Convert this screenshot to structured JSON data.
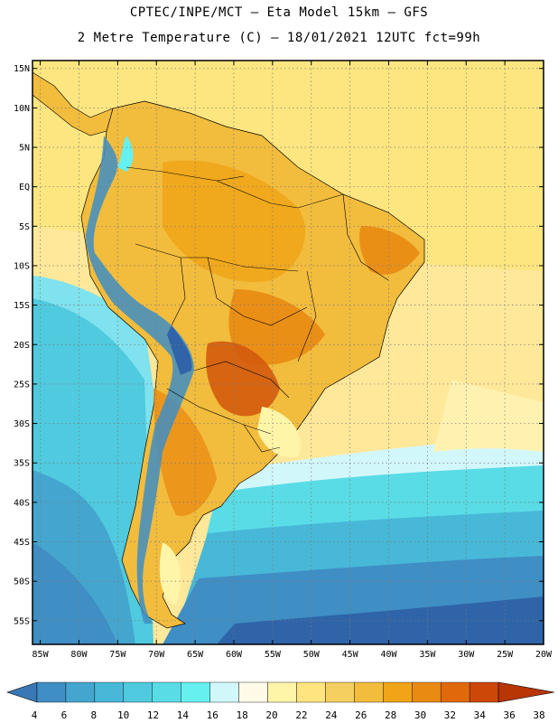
{
  "header": {
    "line1": "CPTEC/INPE/MCT –  Eta Model 15km – GFS",
    "line2": "2 Metre Temperature (C) – 18/01/2021 12UTC fct=99h"
  },
  "map": {
    "extent": {
      "lon_min": -86,
      "lon_max": -20,
      "lat_min": -58,
      "lat_max": 16
    },
    "lat_ticks": [
      15,
      10,
      5,
      0,
      -5,
      -10,
      -15,
      -20,
      -25,
      -30,
      -35,
      -40,
      -45,
      -50,
      -55
    ],
    "lat_labels": [
      "15N",
      "10N",
      "5N",
      "EQ",
      "5S",
      "10S",
      "15S",
      "20S",
      "25S",
      "30S",
      "35S",
      "40S",
      "45S",
      "50S",
      "55S"
    ],
    "lon_ticks": [
      -85,
      -80,
      -75,
      -70,
      -65,
      -60,
      -55,
      -50,
      -45,
      -40,
      -35,
      -30,
      -25,
      -20
    ],
    "lon_labels": [
      "85W",
      "80W",
      "75W",
      "70W",
      "65W",
      "60W",
      "55W",
      "50W",
      "45W",
      "40W",
      "35W",
      "30W",
      "25W",
      "20W"
    ]
  },
  "colorbar": {
    "values": [
      4,
      6,
      8,
      10,
      12,
      14,
      16,
      18,
      20,
      22,
      24,
      26,
      28,
      30,
      32,
      34,
      36,
      38
    ],
    "colors": [
      "#3a78b5",
      "#3f8ec4",
      "#44a6cf",
      "#48b8d8",
      "#4fcade",
      "#59dce6",
      "#66f0f0",
      "#d2f7fb",
      "#fffbe8",
      "#fff5a8",
      "#ffe47f",
      "#f5d060",
      "#f2bc3d",
      "#f0a418",
      "#e98a12",
      "#e06a0a",
      "#cc4708",
      "#b83506"
    ]
  },
  "colors": {
    "ocean_north": "#fde680",
    "ocean_band": "#fff2b0",
    "ocean_cool": "#55cfe3",
    "ocean_cold": "#3f8ec4",
    "ocean_coldest": "#2f64a8",
    "land_base": "#f2bc3d",
    "land_hot": "#e98a12",
    "land_hotter": "#d35a0c",
    "andes": "#3f8ec4",
    "frame": "#000000"
  }
}
